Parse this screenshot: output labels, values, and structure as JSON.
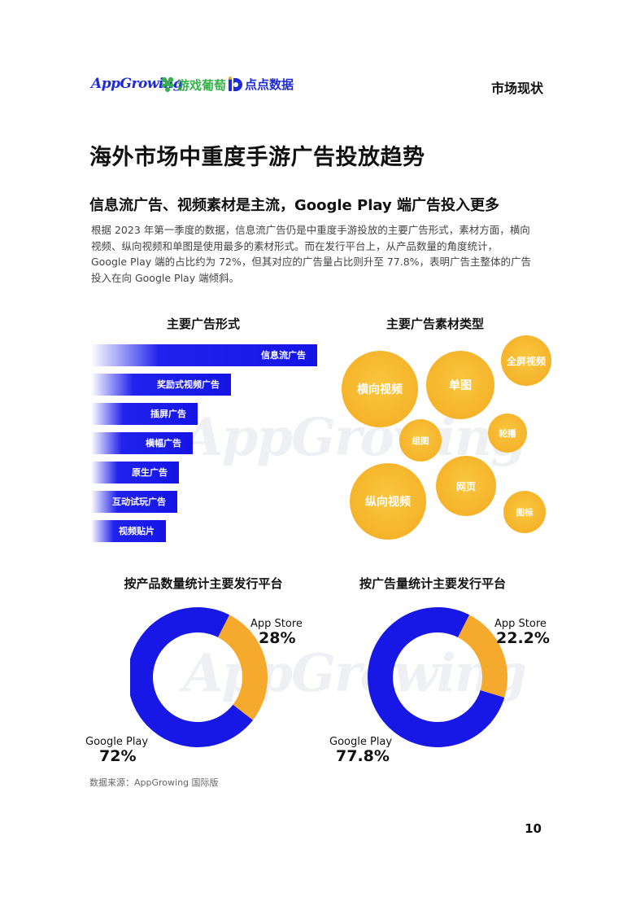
{
  "header": {
    "logo_appgrowing": "AppGrowing",
    "logo_youxiputao": "游戏葡萄",
    "logo_diandian": "点点数据",
    "section": "市场现状"
  },
  "title": "海外市场中重度手游广告投放趋势",
  "subtitle": "信息流广告、视频素材是主流，Google Play 端广告投入更多",
  "body_lines": [
    "根据 2023 年第一季度的数据，信息流广告仍是中重度手游投放的主要广告形式，素材方面，横向",
    "视频、纵向视频和单图是使用最多的素材形式。而在发行平台上，从产品数量的角度统计，",
    "Google Play 端的占比约为 72%，但其对应的广告量占比则升至 77.8%，表明广告主整体的广告",
    "投入在向 Google Play 端倾斜。"
  ],
  "watermark": "AppGrowing",
  "chart_data": [
    {
      "type": "bar",
      "orientation": "horizontal",
      "title": "主要广告形式",
      "categories": [
        "信息流广告",
        "奖励式视频广告",
        "插屏广告",
        "横幅广告",
        "原生广告",
        "互动试玩广告",
        "视频贴片"
      ],
      "values": [
        100,
        62,
        47,
        45,
        39,
        38,
        33
      ],
      "color": "#1414e6"
    },
    {
      "type": "bubble",
      "title": "主要广告素材类型",
      "categories": [
        "横向视频",
        "单图",
        "全屏视频",
        "组图",
        "轮播",
        "纵向视频",
        "网页",
        "图标"
      ],
      "values": [
        47,
        42,
        31,
        26,
        24,
        47,
        37,
        26
      ],
      "color": "#f5b32a"
    },
    {
      "type": "pie",
      "donut": true,
      "title": "按产品数量统计主要发行平台",
      "series": [
        {
          "name": "App Store",
          "value": 28,
          "label": "28%",
          "color": "#f5aa2e"
        },
        {
          "name": "Google Play",
          "value": 72,
          "label": "72%",
          "color": "#1717e6"
        }
      ]
    },
    {
      "type": "pie",
      "donut": true,
      "title": "按广告量统计主要发行平台",
      "series": [
        {
          "name": "App Store",
          "value": 22.2,
          "label": "22.2%",
          "color": "#f5aa2e"
        },
        {
          "name": "Google Play",
          "value": 77.8,
          "label": "77.8%",
          "color": "#1717e6"
        }
      ]
    }
  ],
  "source": "数据来源：AppGrowing 国际版",
  "page_number": "10"
}
